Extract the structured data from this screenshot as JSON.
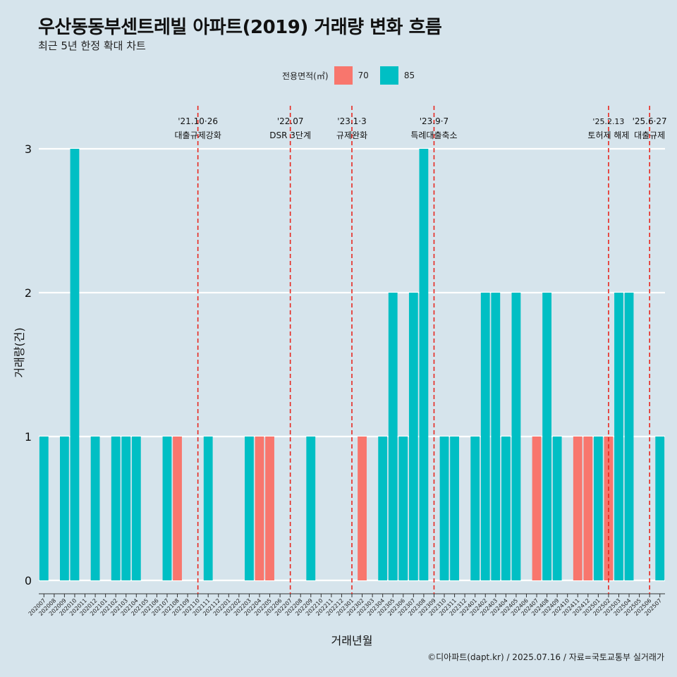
{
  "title": "우산동동부센트레빌 아파트(2019) 거래량 변화 흐름",
  "subtitle": "최근 5년 한정 확대 차트",
  "caption": "©디아파트(dapt.kr) / 2025.07.16 / 자료=국토교통부 실거래가",
  "legend": {
    "title": "전용면적(㎡)",
    "items": [
      {
        "label": "70",
        "color": "#f8766d"
      },
      {
        "label": "85",
        "color": "#00bfc4"
      }
    ]
  },
  "chart_data": {
    "type": "bar",
    "xlabel": "거래년월",
    "ylabel": "거래량(건)",
    "ylim": [
      0,
      3
    ],
    "yticks": [
      0,
      1,
      2,
      3
    ],
    "categories": [
      "202007",
      "202008",
      "202009",
      "202010",
      "202011",
      "202012",
      "202101",
      "202102",
      "202103",
      "202104",
      "202105",
      "202106",
      "202107",
      "202108",
      "202109",
      "202110",
      "202111",
      "202112",
      "202201",
      "202202",
      "202203",
      "202204",
      "202205",
      "202206",
      "202207",
      "202208",
      "202209",
      "202210",
      "202211",
      "202212",
      "202301",
      "202302",
      "202303",
      "202304",
      "202305",
      "202306",
      "202307",
      "202308",
      "202309",
      "202310",
      "202311",
      "202312",
      "202401",
      "202402",
      "202403",
      "202404",
      "202405",
      "202406",
      "202407",
      "202408",
      "202409",
      "202410",
      "202411",
      "202412",
      "202501",
      "202502",
      "202503",
      "202504",
      "202505",
      "202506",
      "202507"
    ],
    "series": [
      {
        "name": "70",
        "color": "#f8766d",
        "values": [
          0,
          0,
          0,
          0,
          0,
          0,
          0,
          0,
          0,
          0,
          0,
          0,
          0,
          1,
          0,
          0,
          0,
          0,
          0,
          0,
          0,
          1,
          1,
          0,
          0,
          0,
          0,
          0,
          0,
          0,
          0,
          1,
          0,
          0,
          0,
          0,
          0,
          0,
          0,
          0,
          0,
          0,
          0,
          0,
          0,
          0,
          0,
          0,
          1,
          0,
          0,
          0,
          1,
          1,
          0,
          1,
          0,
          0,
          0,
          0,
          0
        ]
      },
      {
        "name": "85",
        "color": "#00bfc4",
        "values": [
          1,
          0,
          1,
          3,
          0,
          1,
          0,
          1,
          1,
          1,
          0,
          0,
          1,
          0,
          0,
          0,
          1,
          0,
          0,
          0,
          1,
          0,
          0,
          0,
          0,
          0,
          1,
          0,
          0,
          0,
          0,
          0,
          0,
          1,
          2,
          1,
          2,
          3,
          0,
          1,
          1,
          0,
          1,
          2,
          2,
          1,
          2,
          0,
          0,
          2,
          1,
          0,
          0,
          0,
          1,
          0,
          2,
          2,
          0,
          0,
          1
        ]
      }
    ],
    "annotations": [
      {
        "x": "202110",
        "date": "'21.10·26",
        "label": "대출규제강화"
      },
      {
        "x": "202207",
        "date": "'22.07",
        "label": "DSR 3단계"
      },
      {
        "x": "202301",
        "date": "'23.1·3",
        "label": "규제완화"
      },
      {
        "x": "202309",
        "date": "'23.9·7",
        "label": "특례대출축소"
      },
      {
        "x": "202502",
        "date": "'25.2.13",
        "label": "토허제 해제"
      },
      {
        "x": "202506",
        "date": "'25.6·27",
        "label": "대출규제"
      }
    ]
  }
}
